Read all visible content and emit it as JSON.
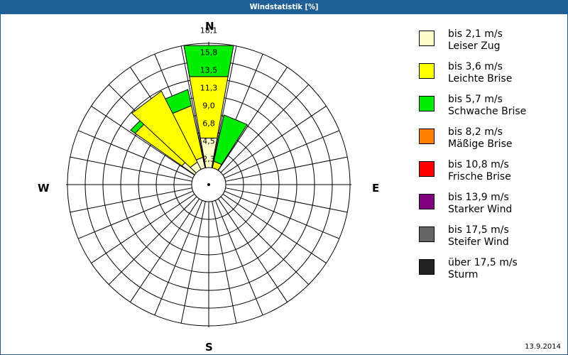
{
  "title": "Windstatistik [%]",
  "date": "13.9.2014",
  "directions": {
    "n": "N",
    "e": "E",
    "s": "S",
    "w": "W"
  },
  "legend": [
    {
      "speed": "bis 2,1 m/s",
      "name": "Leiser Zug",
      "color": "#ffffcc"
    },
    {
      "speed": "bis 3,6 m/s",
      "name": "Leichte Brise",
      "color": "#ffff00"
    },
    {
      "speed": "bis 5,7 m/s",
      "name": "Schwache Brise",
      "color": "#00ee00"
    },
    {
      "speed": "bis 8,2 m/s",
      "name": "Mäßige Brise",
      "color": "#ff8000"
    },
    {
      "speed": "bis 10,8 m/s",
      "name": "Frische Brise",
      "color": "#ff0000"
    },
    {
      "speed": "bis 13,9 m/s",
      "name": "Starker Wind",
      "color": "#800080"
    },
    {
      "speed": "bis 17,5 m/s",
      "name": "Steifer Wind",
      "color": "#666666"
    },
    {
      "speed": "über 17,5 m/s",
      "name": "Sturm",
      "color": "#222222"
    }
  ],
  "chart_data": {
    "type": "polar-stacked-bar (wind rose)",
    "title": "Windstatistik [%]",
    "radial_ticks": [
      "2,3",
      "4,5",
      "6,8",
      "9,0",
      "11,3",
      "13,5",
      "15,8",
      "18,1"
    ],
    "radial_max": 18.1,
    "sector_count": 16,
    "series_order": [
      "Leiser Zug",
      "Leichte Brise",
      "Schwache Brise"
    ],
    "sectors": [
      {
        "dir": "N",
        "angle": 0,
        "Leiser Zug": 4.4,
        "Leichte Brise": 9.1,
        "Schwache Brise": 4.6
      },
      {
        "dir": "NNE",
        "angle": 22.5,
        "Leiser Zug": 0.0,
        "Leichte Brise": 1.0,
        "Schwache Brise": 6.9
      },
      {
        "dir": "NNW",
        "angle": -22.5,
        "Leiser Zug": 1.6,
        "Leichte Brise": 7.7,
        "Schwache Brise": 2.4
      },
      {
        "dir": "NW",
        "angle": -45,
        "Leiser Zug": 2.3,
        "Leichte Brise": 8.3,
        "Schwache Brise": 0.8
      },
      {
        "dir": "WNW",
        "angle": -37,
        "Leiser Zug": 1.2,
        "Leichte Brise": 11.6,
        "Schwache Brise": 0.0
      }
    ]
  }
}
